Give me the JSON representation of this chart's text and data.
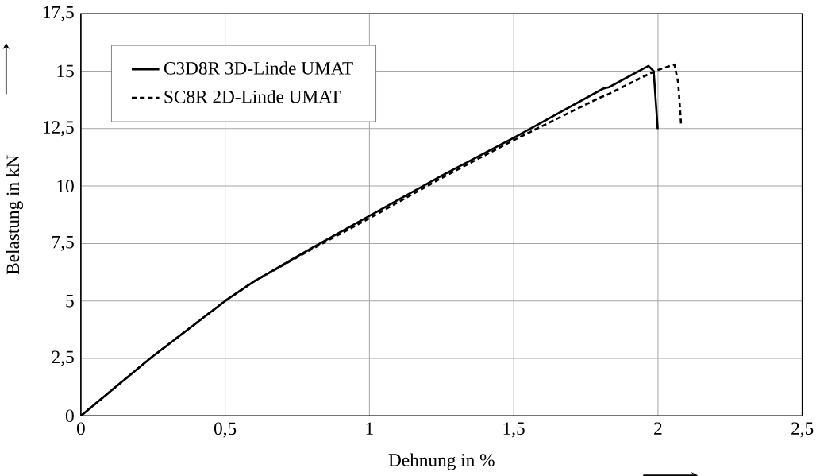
{
  "chart_data": {
    "type": "line",
    "xlabel": "Dehnung in %",
    "ylabel": "Belastung in kN",
    "xlim": [
      0,
      2.5
    ],
    "ylim": [
      0,
      17.5
    ],
    "xticks": [
      0,
      {
        "value": 0.5,
        "label": "0,5"
      },
      1,
      {
        "value": 1.5,
        "label": "1,5"
      },
      2,
      {
        "value": 2.5,
        "label": "2,5"
      }
    ],
    "yticks": [
      0,
      {
        "value": 2.5,
        "label": "2,5"
      },
      5,
      {
        "value": 7.5,
        "label": "7,5"
      },
      10,
      {
        "value": 12.5,
        "label": "12,5"
      },
      15,
      {
        "value": 17.5,
        "label": "17,5"
      }
    ],
    "grid": true,
    "legend": "top left",
    "marker": "none",
    "series": [
      {
        "name": "C3D8R 3D-Linde UMAT",
        "color": "#000000",
        "line_style": "solid",
        "x": [
          0,
          0.24,
          0.5,
          0.6,
          0.8,
          1.0,
          1.25,
          1.5,
          1.81,
          1.83,
          1.967,
          1.985,
          1.999
        ],
        "values": [
          0,
          2.5,
          5.0,
          5.85,
          7.3,
          8.7,
          10.45,
          12.1,
          14.24,
          14.3,
          15.23,
          15.0,
          12.48
        ]
      },
      {
        "name": "SC8R 2D-Linde UMAT",
        "color": "#000000",
        "line_style": "dashed",
        "x": [
          0,
          0.24,
          0.5,
          0.6,
          0.8,
          1.0,
          1.25,
          1.5,
          1.797,
          1.82,
          1.959,
          2.0,
          2.057,
          2.07,
          2.08
        ],
        "values": [
          0,
          2.5,
          5.0,
          5.85,
          7.25,
          8.6,
          10.35,
          12.0,
          13.84,
          13.95,
          14.82,
          15.05,
          15.29,
          14.5,
          12.69
        ]
      }
    ]
  }
}
